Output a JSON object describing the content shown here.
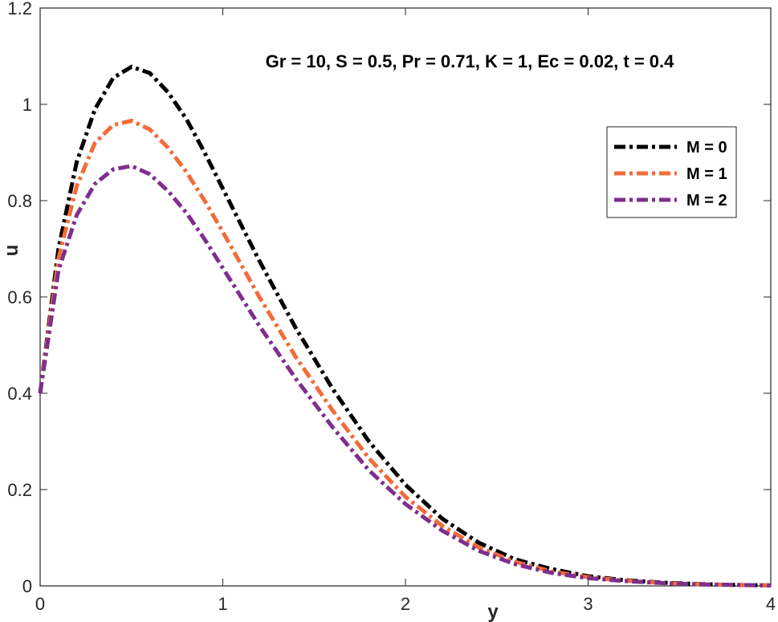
{
  "chart_data": {
    "type": "line",
    "title": "",
    "annotation": "Gr = 10, S = 0.5, Pr = 0.71, K = 1, Ec = 0.02, t = 0.4",
    "xlabel": "y",
    "ylabel": "u",
    "xlim": [
      0,
      4
    ],
    "ylim": [
      0,
      1.2
    ],
    "xticks": [
      0,
      1,
      2,
      3,
      4
    ],
    "xtick_labels": [
      "0",
      "1",
      "2",
      "3",
      "4"
    ],
    "yticks": [
      0,
      0.2,
      0.4,
      0.6,
      0.8,
      1,
      1.2
    ],
    "ytick_labels": [
      "0",
      "0.2",
      "0.4",
      "0.6",
      "0.8",
      "1",
      "1.2"
    ],
    "legend_position": "top-right",
    "x": [
      0,
      0.1,
      0.2,
      0.3,
      0.4,
      0.5,
      0.6,
      0.7,
      0.8,
      0.9,
      1.0,
      1.2,
      1.4,
      1.6,
      1.8,
      2.0,
      2.2,
      2.4,
      2.6,
      2.8,
      3.0,
      3.2,
      3.4,
      3.6,
      3.8,
      4.0
    ],
    "series": [
      {
        "name": "M = 0",
        "color": "#000000",
        "values": [
          0.4,
          0.7,
          0.88,
          0.99,
          1.055,
          1.078,
          1.065,
          1.025,
          0.97,
          0.9,
          0.825,
          0.675,
          0.535,
          0.41,
          0.3,
          0.21,
          0.14,
          0.09,
          0.055,
          0.035,
          0.02,
          0.012,
          0.007,
          0.004,
          0.002,
          0.001
        ]
      },
      {
        "name": "M = 1",
        "color": "#F26B38",
        "values": [
          0.4,
          0.68,
          0.83,
          0.92,
          0.957,
          0.966,
          0.948,
          0.91,
          0.86,
          0.8,
          0.735,
          0.6,
          0.475,
          0.365,
          0.265,
          0.185,
          0.125,
          0.08,
          0.05,
          0.03,
          0.018,
          0.011,
          0.006,
          0.0035,
          0.002,
          0.001
        ]
      },
      {
        "name": "M = 2",
        "color": "#7E2F8E",
        "values": [
          0.4,
          0.655,
          0.77,
          0.835,
          0.865,
          0.872,
          0.855,
          0.82,
          0.775,
          0.72,
          0.66,
          0.54,
          0.43,
          0.33,
          0.24,
          0.17,
          0.115,
          0.073,
          0.045,
          0.027,
          0.016,
          0.01,
          0.006,
          0.003,
          0.002,
          0.001
        ]
      }
    ]
  }
}
